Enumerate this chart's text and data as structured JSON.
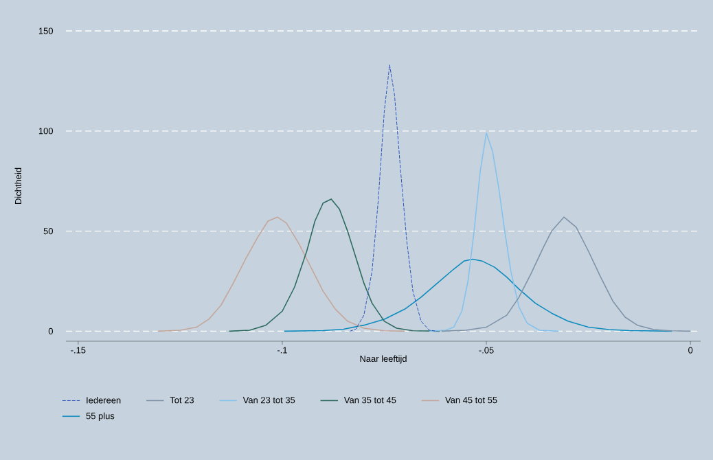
{
  "chart_data": {
    "type": "line",
    "xlabel": "Naar leeftijd",
    "ylabel": "Dichtheid",
    "xlim": [
      -0.153,
      0.0025
    ],
    "ylim": [
      -5,
      150
    ],
    "xticks": [
      {
        "value": -0.15,
        "label": "-.15"
      },
      {
        "value": -0.1,
        "label": "-.1"
      },
      {
        "value": -0.05,
        "label": "-.05"
      },
      {
        "value": 0,
        "label": "0"
      }
    ],
    "yticks": [
      0,
      50,
      100,
      150
    ],
    "grid": "y",
    "legend": "bottom",
    "marker": "none",
    "line_style": "solid",
    "series": [
      {
        "name": "Iedereen",
        "color": "#1a47b8",
        "line_style": "dashed",
        "x": [
          -0.0835,
          -0.082,
          -0.08,
          -0.078,
          -0.0765,
          -0.075,
          -0.0737,
          -0.0725,
          -0.071,
          -0.0695,
          -0.068,
          -0.066,
          -0.064,
          -0.062
        ],
        "values": [
          0,
          1,
          8,
          30,
          65,
          110,
          133,
          118,
          80,
          45,
          20,
          5,
          0.5,
          0
        ]
      },
      {
        "name": "Tot 23",
        "color": "#7f93a8",
        "x": [
          -0.061,
          -0.055,
          -0.05,
          -0.045,
          -0.042,
          -0.039,
          -0.036,
          -0.034,
          -0.031,
          -0.028,
          -0.025,
          -0.022,
          -0.019,
          -0.016,
          -0.013,
          -0.009,
          -0.005,
          0
        ],
        "values": [
          0,
          0.5,
          2,
          8,
          17,
          29,
          42,
          50,
          57,
          52,
          40,
          27,
          15,
          7,
          3,
          0.8,
          0.2,
          0
        ]
      },
      {
        "name": "Van 23 tot 35",
        "color": "#86c2eb",
        "x": [
          -0.064,
          -0.06,
          -0.058,
          -0.056,
          -0.0545,
          -0.053,
          -0.0515,
          -0.05,
          -0.0485,
          -0.047,
          -0.0455,
          -0.044,
          -0.042,
          -0.04,
          -0.037,
          -0.0323
        ],
        "values": [
          0,
          0.5,
          2,
          10,
          25,
          50,
          80,
          99,
          90,
          72,
          50,
          30,
          12,
          4,
          0.5,
          0
        ]
      },
      {
        "name": "Van 35 tot 45",
        "color": "#2d6b5f",
        "x": [
          -0.113,
          -0.108,
          -0.104,
          -0.1,
          -0.097,
          -0.094,
          -0.092,
          -0.09,
          -0.088,
          -0.086,
          -0.084,
          -0.082,
          -0.08,
          -0.078,
          -0.075,
          -0.072,
          -0.068,
          -0.0614
        ],
        "values": [
          0,
          0.5,
          3,
          10,
          22,
          40,
          55,
          64,
          66,
          61,
          50,
          37,
          24,
          14,
          5,
          1.5,
          0.2,
          0
        ]
      },
      {
        "name": "Van 45 tot 55",
        "color": "#c4a69a",
        "x": [
          -0.1305,
          -0.125,
          -0.121,
          -0.118,
          -0.115,
          -0.112,
          -0.109,
          -0.106,
          -0.1035,
          -0.1012,
          -0.099,
          -0.096,
          -0.093,
          -0.09,
          -0.087,
          -0.084,
          -0.08,
          -0.075,
          -0.07
        ],
        "values": [
          0,
          0.5,
          2,
          6,
          13,
          24,
          36,
          47,
          55,
          57,
          54,
          44,
          32,
          20,
          11,
          5,
          1.5,
          0.2,
          0
        ]
      },
      {
        "name": "55 plus",
        "color": "#0f8bbd",
        "x": [
          -0.0995,
          -0.09,
          -0.085,
          -0.08,
          -0.075,
          -0.07,
          -0.066,
          -0.062,
          -0.058,
          -0.0555,
          -0.0534,
          -0.051,
          -0.048,
          -0.045,
          -0.042,
          -0.038,
          -0.034,
          -0.03,
          -0.025,
          -0.02,
          -0.015,
          -0.0045
        ],
        "values": [
          0,
          0.3,
          1,
          3,
          6,
          11,
          17,
          24,
          31,
          35,
          36,
          35,
          32,
          27,
          21,
          14,
          9,
          5,
          2,
          0.8,
          0.3,
          0
        ]
      }
    ]
  }
}
